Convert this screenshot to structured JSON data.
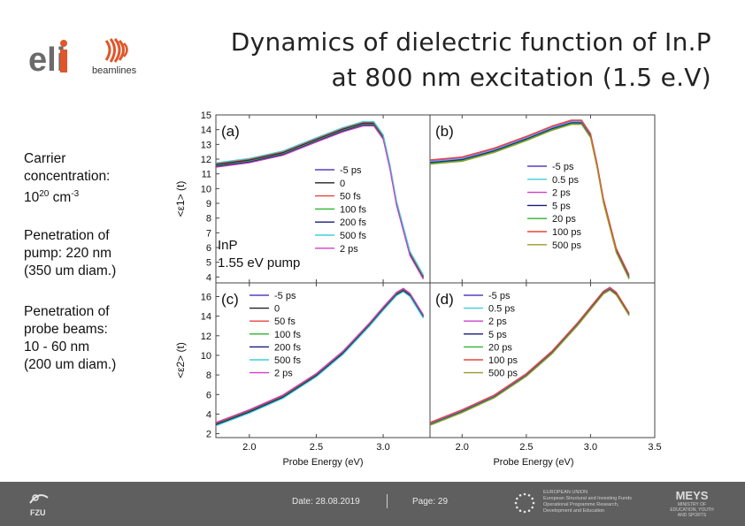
{
  "title_line1": "Dynamics of dielectric function of In.P",
  "title_line2": "at 800 nm excitation (1.5 e.V)",
  "logos": {
    "eli": "eli",
    "beamlines": "beamlines",
    "fzu": "FZU"
  },
  "notes": {
    "carrier": {
      "line1": "Carrier",
      "line2": "concentration:",
      "base": "10",
      "exp1": "20",
      "unit": " cm",
      "exp2": "-3"
    },
    "pump": {
      "line1": "Penetration of",
      "line2": "pump: 220 nm",
      "line3": "(350 um diam.)"
    },
    "probe": {
      "line1": "Penetration of",
      "line2": "probe beams:",
      "line3": "10 - 60 nm",
      "line4": "(200 um diam.)"
    }
  },
  "footer": {
    "date": "Date: 28.08.2019",
    "page": "Page: 29",
    "eu_text": [
      "EUROPEAN UNION",
      "European Structural and Investing Funds",
      "Operational Programme Research,",
      "Development and Education"
    ],
    "mt_text": "MEYS",
    "mt_sub": "MINISTRY OF EDUCATION, YOUTH AND SPORTS"
  },
  "chart_data": {
    "type": "line",
    "xlabel": "Probe Energy (eV)",
    "xlim_left": [
      1.75,
      3.35
    ],
    "xlim_right": [
      1.75,
      3.5
    ],
    "x_ticks": [
      2.0,
      2.5,
      3.0
    ],
    "x_ticks_right": [
      2.0,
      2.5,
      3.0,
      3.5
    ],
    "panel_a_annotation": [
      "InP",
      "1.55 eV pump"
    ],
    "panels": [
      {
        "label": "(a)",
        "ylabel": "<ε1> (t)",
        "ylim": [
          3.6,
          15
        ],
        "yticks": [
          4,
          5,
          6,
          7,
          8,
          9,
          10,
          11,
          12,
          13,
          14,
          15
        ],
        "x": [
          1.75,
          2.0,
          2.25,
          2.5,
          2.7,
          2.85,
          2.93,
          3.0,
          3.05,
          3.1,
          3.2,
          3.3
        ],
        "y": [
          11.6,
          11.9,
          12.4,
          13.3,
          14.0,
          14.4,
          14.4,
          13.5,
          11.5,
          9.0,
          5.6,
          4.0
        ],
        "series": [
          {
            "name": "-5 ps",
            "color": "#5a3fbf",
            "dy": 0.0
          },
          {
            "name": "0",
            "color": "#222222",
            "dy": 0.05
          },
          {
            "name": "50 fs",
            "color": "#e8453c",
            "dy": 0.1
          },
          {
            "name": "100 fs",
            "color": "#2db52d",
            "dy": -0.05
          },
          {
            "name": "200 fs",
            "color": "#1a1a7a",
            "dy": -0.1
          },
          {
            "name": "500 fs",
            "color": "#3fd0d9",
            "dy": 0.15
          },
          {
            "name": "2 ps",
            "color": "#d040c8",
            "dy": -0.15
          }
        ]
      },
      {
        "label": "(b)",
        "ylabel": "",
        "ylim": [
          3.6,
          15
        ],
        "yticks": [],
        "x": [
          1.75,
          2.0,
          2.25,
          2.5,
          2.7,
          2.85,
          2.93,
          3.0,
          3.05,
          3.1,
          3.2,
          3.3
        ],
        "y": [
          11.8,
          12.0,
          12.6,
          13.4,
          14.1,
          14.5,
          14.5,
          13.6,
          11.6,
          9.2,
          5.8,
          4.0
        ],
        "series": [
          {
            "name": "-5 ps",
            "color": "#5a3fbf",
            "dy": 0.0
          },
          {
            "name": "0.5 ps",
            "color": "#3fd0d9",
            "dy": 0.05
          },
          {
            "name": "2 ps",
            "color": "#d040c8",
            "dy": 0.1
          },
          {
            "name": "5 ps",
            "color": "#1a1a7a",
            "dy": -0.05
          },
          {
            "name": "20 ps",
            "color": "#2db52d",
            "dy": -0.1
          },
          {
            "name": "100 ps",
            "color": "#e8453c",
            "dy": 0.15
          },
          {
            "name": "500 ps",
            "color": "#9c9c2a",
            "dy": -0.15
          }
        ]
      },
      {
        "label": "(c)",
        "ylabel": "<ε2> (t)",
        "ylim": [
          1.6,
          17.4
        ],
        "yticks": [
          2,
          4,
          6,
          8,
          10,
          12,
          14,
          16
        ],
        "x": [
          1.75,
          2.0,
          2.25,
          2.5,
          2.7,
          2.9,
          3.0,
          3.1,
          3.15,
          3.2,
          3.3
        ],
        "y": [
          3.0,
          4.3,
          5.8,
          8.0,
          10.3,
          13.2,
          14.8,
          16.3,
          16.7,
          16.2,
          14.0
        ],
        "series": [
          {
            "name": "-5 ps",
            "color": "#5a3fbf",
            "dy": 0.0
          },
          {
            "name": "0",
            "color": "#222222",
            "dy": 0.05
          },
          {
            "name": "50 fs",
            "color": "#e8453c",
            "dy": 0.1
          },
          {
            "name": "100 fs",
            "color": "#2db52d",
            "dy": -0.05
          },
          {
            "name": "200 fs",
            "color": "#1a1a7a",
            "dy": -0.1
          },
          {
            "name": "500 fs",
            "color": "#3fd0d9",
            "dy": -0.2
          },
          {
            "name": "2 ps",
            "color": "#d040c8",
            "dy": 0.15
          }
        ]
      },
      {
        "label": "(d)",
        "ylabel": "",
        "ylim": [
          1.6,
          17.4
        ],
        "yticks": [],
        "x": [
          1.75,
          2.0,
          2.25,
          2.5,
          2.7,
          2.9,
          3.0,
          3.1,
          3.15,
          3.2,
          3.3
        ],
        "y": [
          3.0,
          4.3,
          5.8,
          8.0,
          10.3,
          13.2,
          14.8,
          16.4,
          16.8,
          16.3,
          14.2
        ],
        "series": [
          {
            "name": "-5 ps",
            "color": "#5a3fbf",
            "dy": 0.0
          },
          {
            "name": "0.5 ps",
            "color": "#3fd0d9",
            "dy": 0.05
          },
          {
            "name": "2 ps",
            "color": "#d040c8",
            "dy": 0.1
          },
          {
            "name": "5 ps",
            "color": "#1a1a7a",
            "dy": -0.05
          },
          {
            "name": "20 ps",
            "color": "#2db52d",
            "dy": -0.1
          },
          {
            "name": "100 ps",
            "color": "#e8453c",
            "dy": 0.15
          },
          {
            "name": "500 ps",
            "color": "#9c9c2a",
            "dy": -0.15
          }
        ]
      }
    ]
  }
}
